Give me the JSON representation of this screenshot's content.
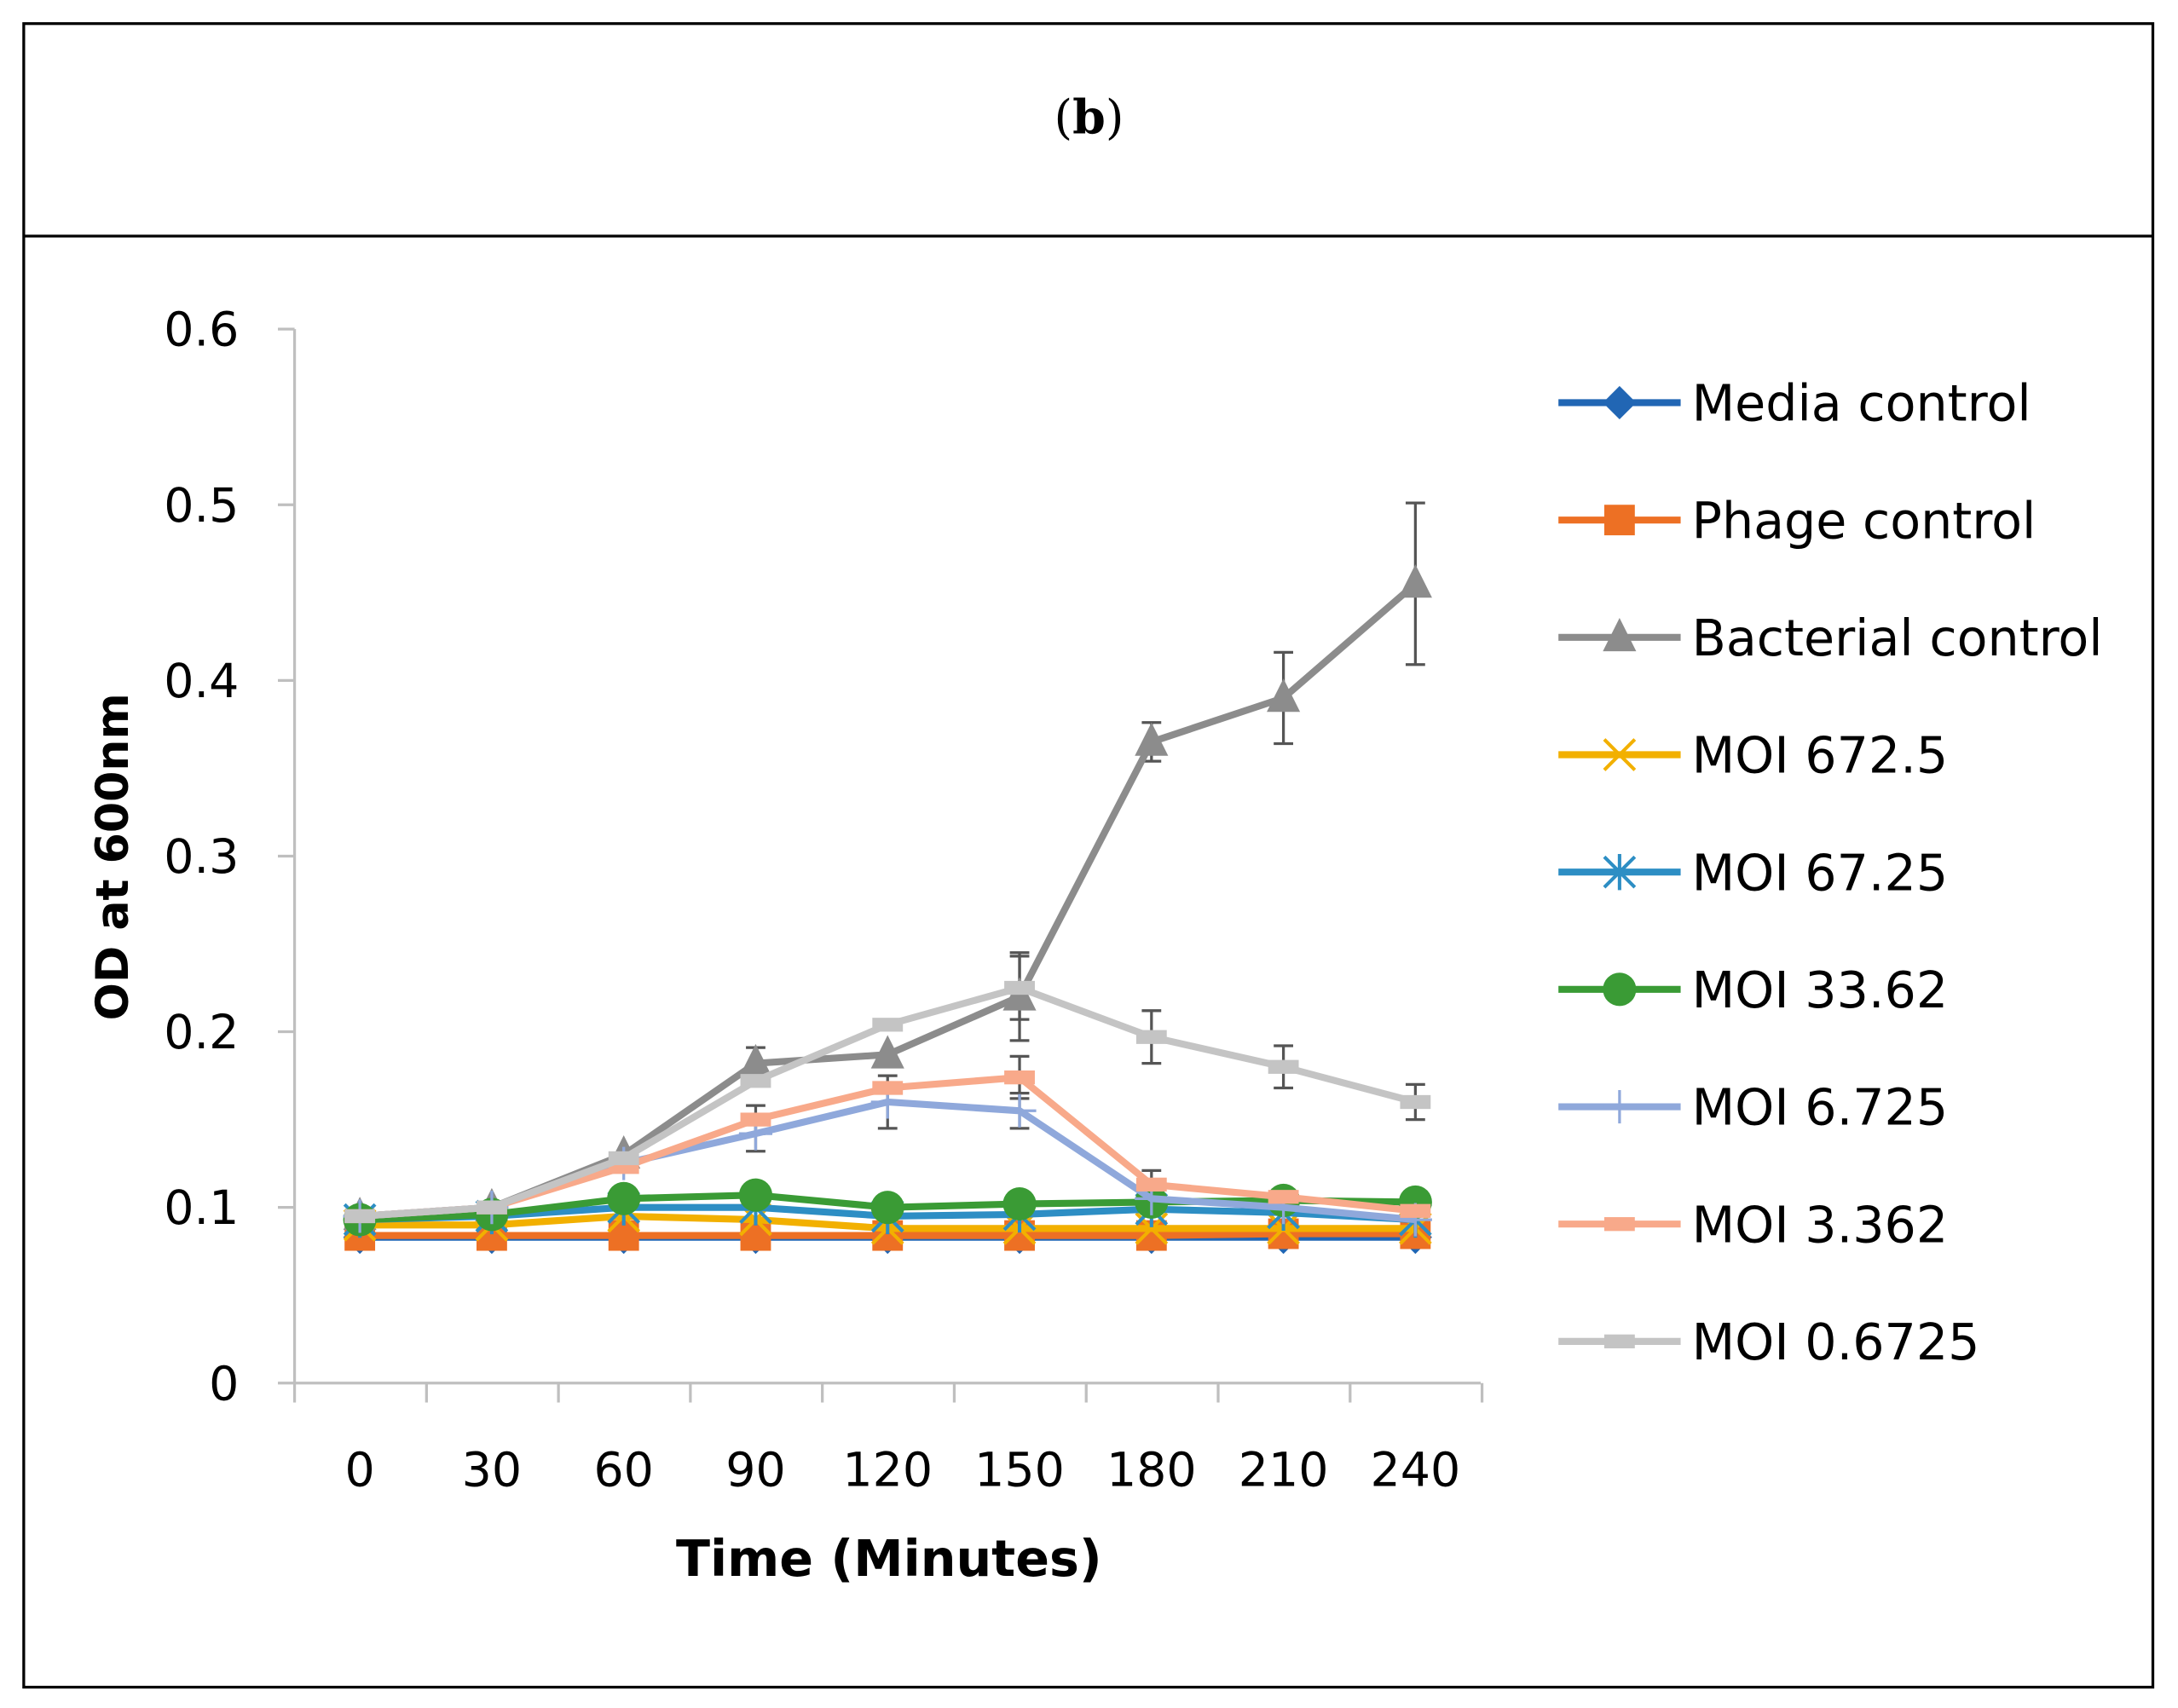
{
  "panel_label": "(b)",
  "panel_label_parts": {
    "open": "(",
    "letter": "b",
    "close": ")"
  },
  "chart_data": {
    "type": "line",
    "title": "",
    "xlabel": "Time (Minutes)",
    "ylabel": "OD at 600nm",
    "x": [
      0,
      30,
      60,
      90,
      120,
      150,
      180,
      210,
      240
    ],
    "x_tick_labels": [
      "0",
      "30",
      "60",
      "90",
      "120",
      "150",
      "180",
      "210",
      "240"
    ],
    "ylim": [
      0,
      0.6
    ],
    "y_tick_labels": [
      "0",
      "0.1",
      "0.2",
      "0.3",
      "0.4",
      "0.5",
      "0.6"
    ],
    "y_ticks": [
      0,
      0.1,
      0.2,
      0.3,
      0.4,
      0.5,
      0.6
    ],
    "grid": false,
    "legend_position": "right",
    "series": [
      {
        "name": "Media control",
        "color": "#2166b4",
        "marker": "diamond",
        "values": [
          0.083,
          0.083,
          0.083,
          0.083,
          0.083,
          0.083,
          0.083,
          0.083,
          0.083
        ],
        "errors": [
          0,
          0,
          0,
          0,
          0,
          0,
          0,
          0,
          0
        ]
      },
      {
        "name": "Phage control",
        "color": "#ed7024",
        "marker": "square",
        "values": [
          0.084,
          0.084,
          0.084,
          0.084,
          0.084,
          0.084,
          0.084,
          0.085,
          0.085
        ],
        "errors": [
          0,
          0,
          0,
          0,
          0,
          0,
          0,
          0,
          0
        ]
      },
      {
        "name": "Bacterial control",
        "color": "#8c8c8c",
        "marker": "triangle",
        "values": [
          0.095,
          0.1,
          0.13,
          0.182,
          0.187,
          0.22,
          0.365,
          0.39,
          0.455
        ],
        "errors": [
          0,
          0,
          0,
          0.009,
          0,
          0.025,
          0.011,
          0.026,
          0.046
        ]
      },
      {
        "name": "MOI 672.5",
        "color": "#f2b000",
        "marker": "x",
        "values": [
          0.09,
          0.09,
          0.095,
          0.093,
          0.088,
          0.088,
          0.088,
          0.088,
          0.088
        ],
        "errors": [
          0,
          0,
          0,
          0,
          0,
          0,
          0,
          0,
          0
        ]
      },
      {
        "name": "MOI 67.25",
        "color": "#2d8ec4",
        "marker": "star",
        "values": [
          0.093,
          0.095,
          0.1,
          0.1,
          0.095,
          0.096,
          0.099,
          0.097,
          0.093
        ],
        "errors": [
          0,
          0,
          0,
          0,
          0,
          0,
          0,
          0,
          0
        ]
      },
      {
        "name": "MOI 33.62",
        "color": "#3a9b35",
        "marker": "circle",
        "values": [
          0.093,
          0.096,
          0.105,
          0.107,
          0.1,
          0.102,
          0.103,
          0.104,
          0.103
        ],
        "errors": [
          0,
          0,
          0,
          0,
          0,
          0,
          0,
          0,
          0
        ]
      },
      {
        "name": "MOI 6.725",
        "color": "#8fa8db",
        "marker": "plus",
        "values": [
          0.095,
          0.1,
          0.125,
          0.142,
          0.16,
          0.155,
          0.105,
          0.1,
          0.093
        ],
        "errors": [
          0,
          0,
          0,
          0.01,
          0.015,
          0.01,
          0,
          0,
          0
        ]
      },
      {
        "name": "MOI 3.362",
        "color": "#f8a98a",
        "marker": "dash",
        "values": [
          0.095,
          0.1,
          0.123,
          0.15,
          0.168,
          0.174,
          0.113,
          0.106,
          0.098
        ],
        "errors": [
          0,
          0,
          0,
          0.008,
          0,
          0.012,
          0.008,
          0,
          0
        ]
      },
      {
        "name": "MOI 0.6725",
        "color": "#c4c4c4",
        "marker": "dash",
        "values": [
          0.095,
          0.1,
          0.128,
          0.172,
          0.204,
          0.225,
          0.197,
          0.18,
          0.16
        ],
        "errors": [
          0,
          0,
          0,
          0,
          0,
          0.018,
          0.015,
          0.012,
          0.01
        ]
      }
    ]
  }
}
